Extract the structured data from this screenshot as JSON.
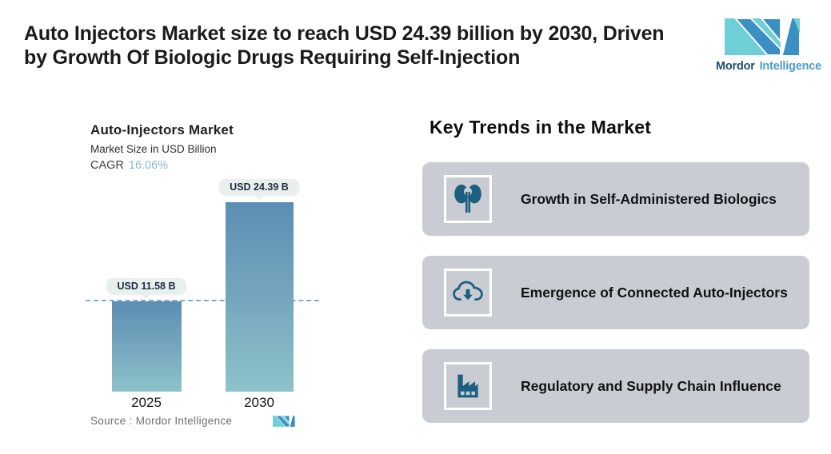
{
  "header": {
    "title_lines": [
      "Auto Injectors Market size to reach USD 24.39 billion by 2030, Driven",
      "by Growth Of Biologic Drugs Requiring Self-Injection"
    ],
    "brand_bold": "Mordor",
    "brand_light": "Intelligence"
  },
  "chart": {
    "title": "Auto-Injectors Market",
    "subtitle": "Market Size in USD Billion",
    "cagr_label": "CAGR",
    "cagr_value": "16.06%",
    "source": "Source :  Mordor Intelligence",
    "bars": [
      {
        "year": "2025",
        "label": "USD 11.58 B",
        "value": 11.58
      },
      {
        "year": "2030",
        "label": "USD 24.39 B",
        "value": 24.39
      }
    ]
  },
  "chart_data": {
    "type": "bar",
    "title": "Auto-Injectors Market",
    "subtitle": "Market Size in USD Billion",
    "cagr_percent": 16.06,
    "categories": [
      "2025",
      "2030"
    ],
    "values": [
      11.58,
      24.39
    ],
    "value_labels": [
      "USD 11.58 B",
      "USD 24.39 B"
    ],
    "unit": "USD Billion",
    "ylabel": "Market Size in USD Billion",
    "xlabel": "",
    "grid": false,
    "legend": false,
    "annotations": {
      "dashed_reference_line_at": 11.58
    },
    "source": "Source :  Mordor Intelligence"
  },
  "trends": {
    "heading": "Key Trends in the Market",
    "items": [
      {
        "icon": "kidneys-icon",
        "text": "Growth in Self-Administered Biologics"
      },
      {
        "icon": "cloud-download-icon",
        "text": "Emergence of Connected Auto-Injectors"
      },
      {
        "icon": "factory-icon",
        "text": "Regulatory and Supply Chain Influence"
      }
    ]
  },
  "colors": {
    "bar_gradient_top": "#5c8eb3",
    "bar_gradient_bottom": "#8dc2c9",
    "dashed_line": "#86abce",
    "value_label_bg": "#e9efed",
    "card_bg": "#c9cdd3",
    "icon_teal": "#1d5f80",
    "cagr_value": "#8ab8da",
    "brand_teal": "#6fcfd6",
    "brand_blue": "#3a8fc3",
    "source_text": "#6f6f6f"
  }
}
